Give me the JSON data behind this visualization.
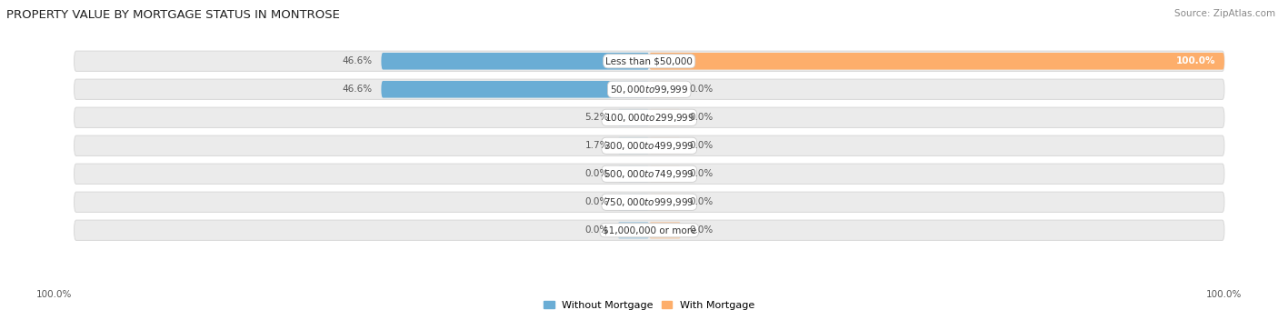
{
  "title": "PROPERTY VALUE BY MORTGAGE STATUS IN MONTROSE",
  "source": "Source: ZipAtlas.com",
  "categories": [
    "Less than $50,000",
    "$50,000 to $99,999",
    "$100,000 to $299,999",
    "$300,000 to $499,999",
    "$500,000 to $749,999",
    "$750,000 to $999,999",
    "$1,000,000 or more"
  ],
  "without_mortgage": [
    46.6,
    46.6,
    5.2,
    1.7,
    0.0,
    0.0,
    0.0
  ],
  "with_mortgage": [
    100.0,
    0.0,
    0.0,
    0.0,
    0.0,
    0.0,
    0.0
  ],
  "without_mortgage_color": "#6aadd5",
  "with_mortgage_color": "#fdae6b",
  "bar_bg_color": "#ebebeb",
  "bar_bg_edge_color": "#d8d8d8",
  "label_color": "#555555",
  "category_label_color": "#333333",
  "title_fontsize": 9.5,
  "source_fontsize": 7.5,
  "label_fontsize": 7.5,
  "category_fontsize": 7.5,
  "legend_fontsize": 8,
  "axis_label_fontsize": 7.5,
  "figwidth": 14.06,
  "figheight": 3.41,
  "dpi": 100,
  "min_bar_pct": 5.5
}
